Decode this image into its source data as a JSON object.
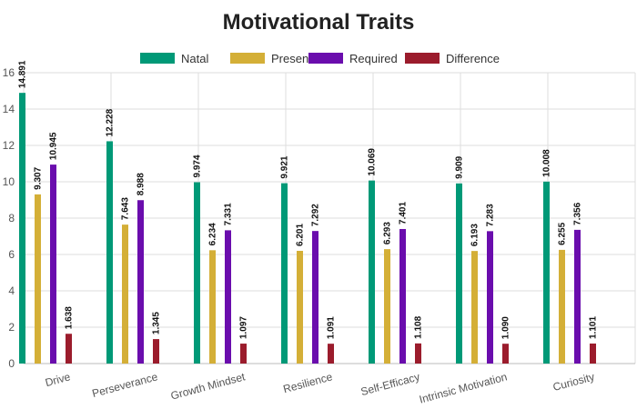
{
  "chart_data": {
    "type": "bar",
    "title": "Motivational Traits",
    "xlabel": "",
    "ylabel": "",
    "ylim": [
      0,
      16
    ],
    "yticks": [
      "0",
      "2",
      "4",
      "6",
      "8",
      "10",
      "12",
      "14",
      "16"
    ],
    "grid": true,
    "legend_position": "top-center",
    "categories": [
      "Drive",
      "Perseverance",
      "Growth Mindset",
      "Resilience",
      "Self-Efficacy",
      "Intrinsic Motivation",
      "Curiosity"
    ],
    "series": [
      {
        "name": "Natal",
        "color": "#009977",
        "values": [
          14.891,
          12.228,
          9.974,
          9.921,
          10.069,
          9.909,
          10.008
        ],
        "labels": [
          "14.891",
          "12.228",
          "9.974",
          "9.921",
          "10.069",
          "9.909",
          "10.008"
        ]
      },
      {
        "name": "Present",
        "color": "#D4AF37",
        "values": [
          9.307,
          7.643,
          6.234,
          6.201,
          6.293,
          6.193,
          6.255
        ],
        "labels": [
          "9.307",
          "7.643",
          "6.234",
          "6.201",
          "6.293",
          "6.193",
          "6.255"
        ]
      },
      {
        "name": "Required",
        "color": "#6A0DAD",
        "values": [
          10.945,
          8.988,
          7.331,
          7.292,
          7.401,
          7.283,
          7.356
        ],
        "labels": [
          "10.945",
          "8.988",
          "7.331",
          "7.292",
          "7.401",
          "7.283",
          "7.356"
        ]
      },
      {
        "name": "Difference",
        "color": "#9B1C2C",
        "values": [
          1.638,
          1.345,
          1.097,
          1.091,
          1.108,
          1.09,
          1.101
        ],
        "labels": [
          "1.638",
          "1.345",
          "1.097",
          "1.091",
          "1.108",
          "1.090",
          "1.101"
        ]
      }
    ]
  }
}
